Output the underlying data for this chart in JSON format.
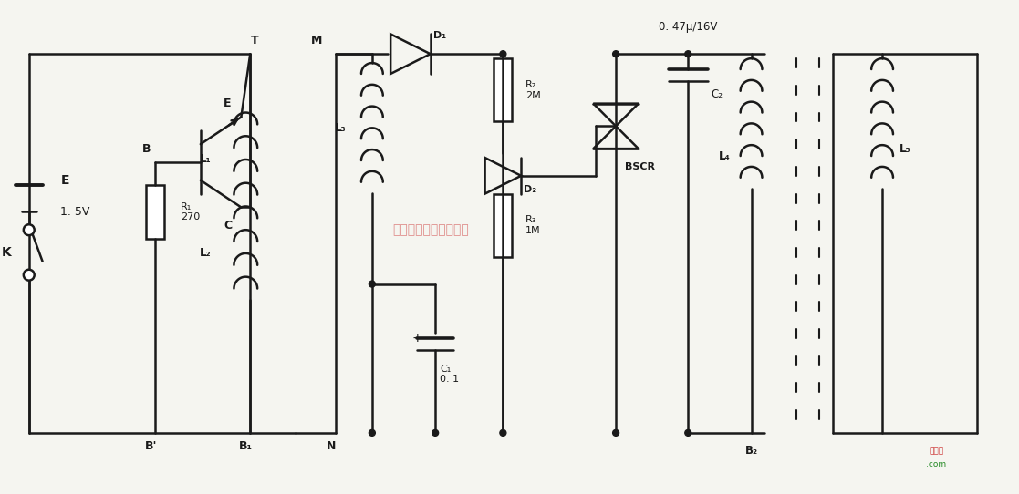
{
  "bg_color": "#f5f5f0",
  "line_color": "#1a1a1a",
  "lw": 1.8,
  "fig_width": 11.17,
  "fig_height": 5.42,
  "label_0_47": "0. 47μ/16V",
  "label_BSCR": "BSCR",
  "label_R1": "R₁\n270",
  "label_R2": "R₂\n2M",
  "label_R3": "R₃\n1M",
  "label_C1": "C₁\n0. 1",
  "label_C2": "C₂",
  "label_L1": "L₁",
  "label_L2": "L₂",
  "label_L3": "L₃",
  "label_L4": "L₄",
  "label_L5": "L₅",
  "label_D1": "D₁",
  "label_D2": "D₂",
  "label_E": "E",
  "label_1_5V": "1. 5V",
  "label_K": "K",
  "label_T": "T",
  "label_B": "B",
  "label_C_tr": "C",
  "label_E_tr": "E",
  "label_B_prime": "B'",
  "label_B1": "B₁",
  "label_N": "N",
  "label_M": "M",
  "label_B2": "B₂",
  "watermark": "杭州将睿科技有限公司",
  "wm_color": "#cc3333",
  "jiexiantu": "接线图",
  "dot_com": ".com"
}
